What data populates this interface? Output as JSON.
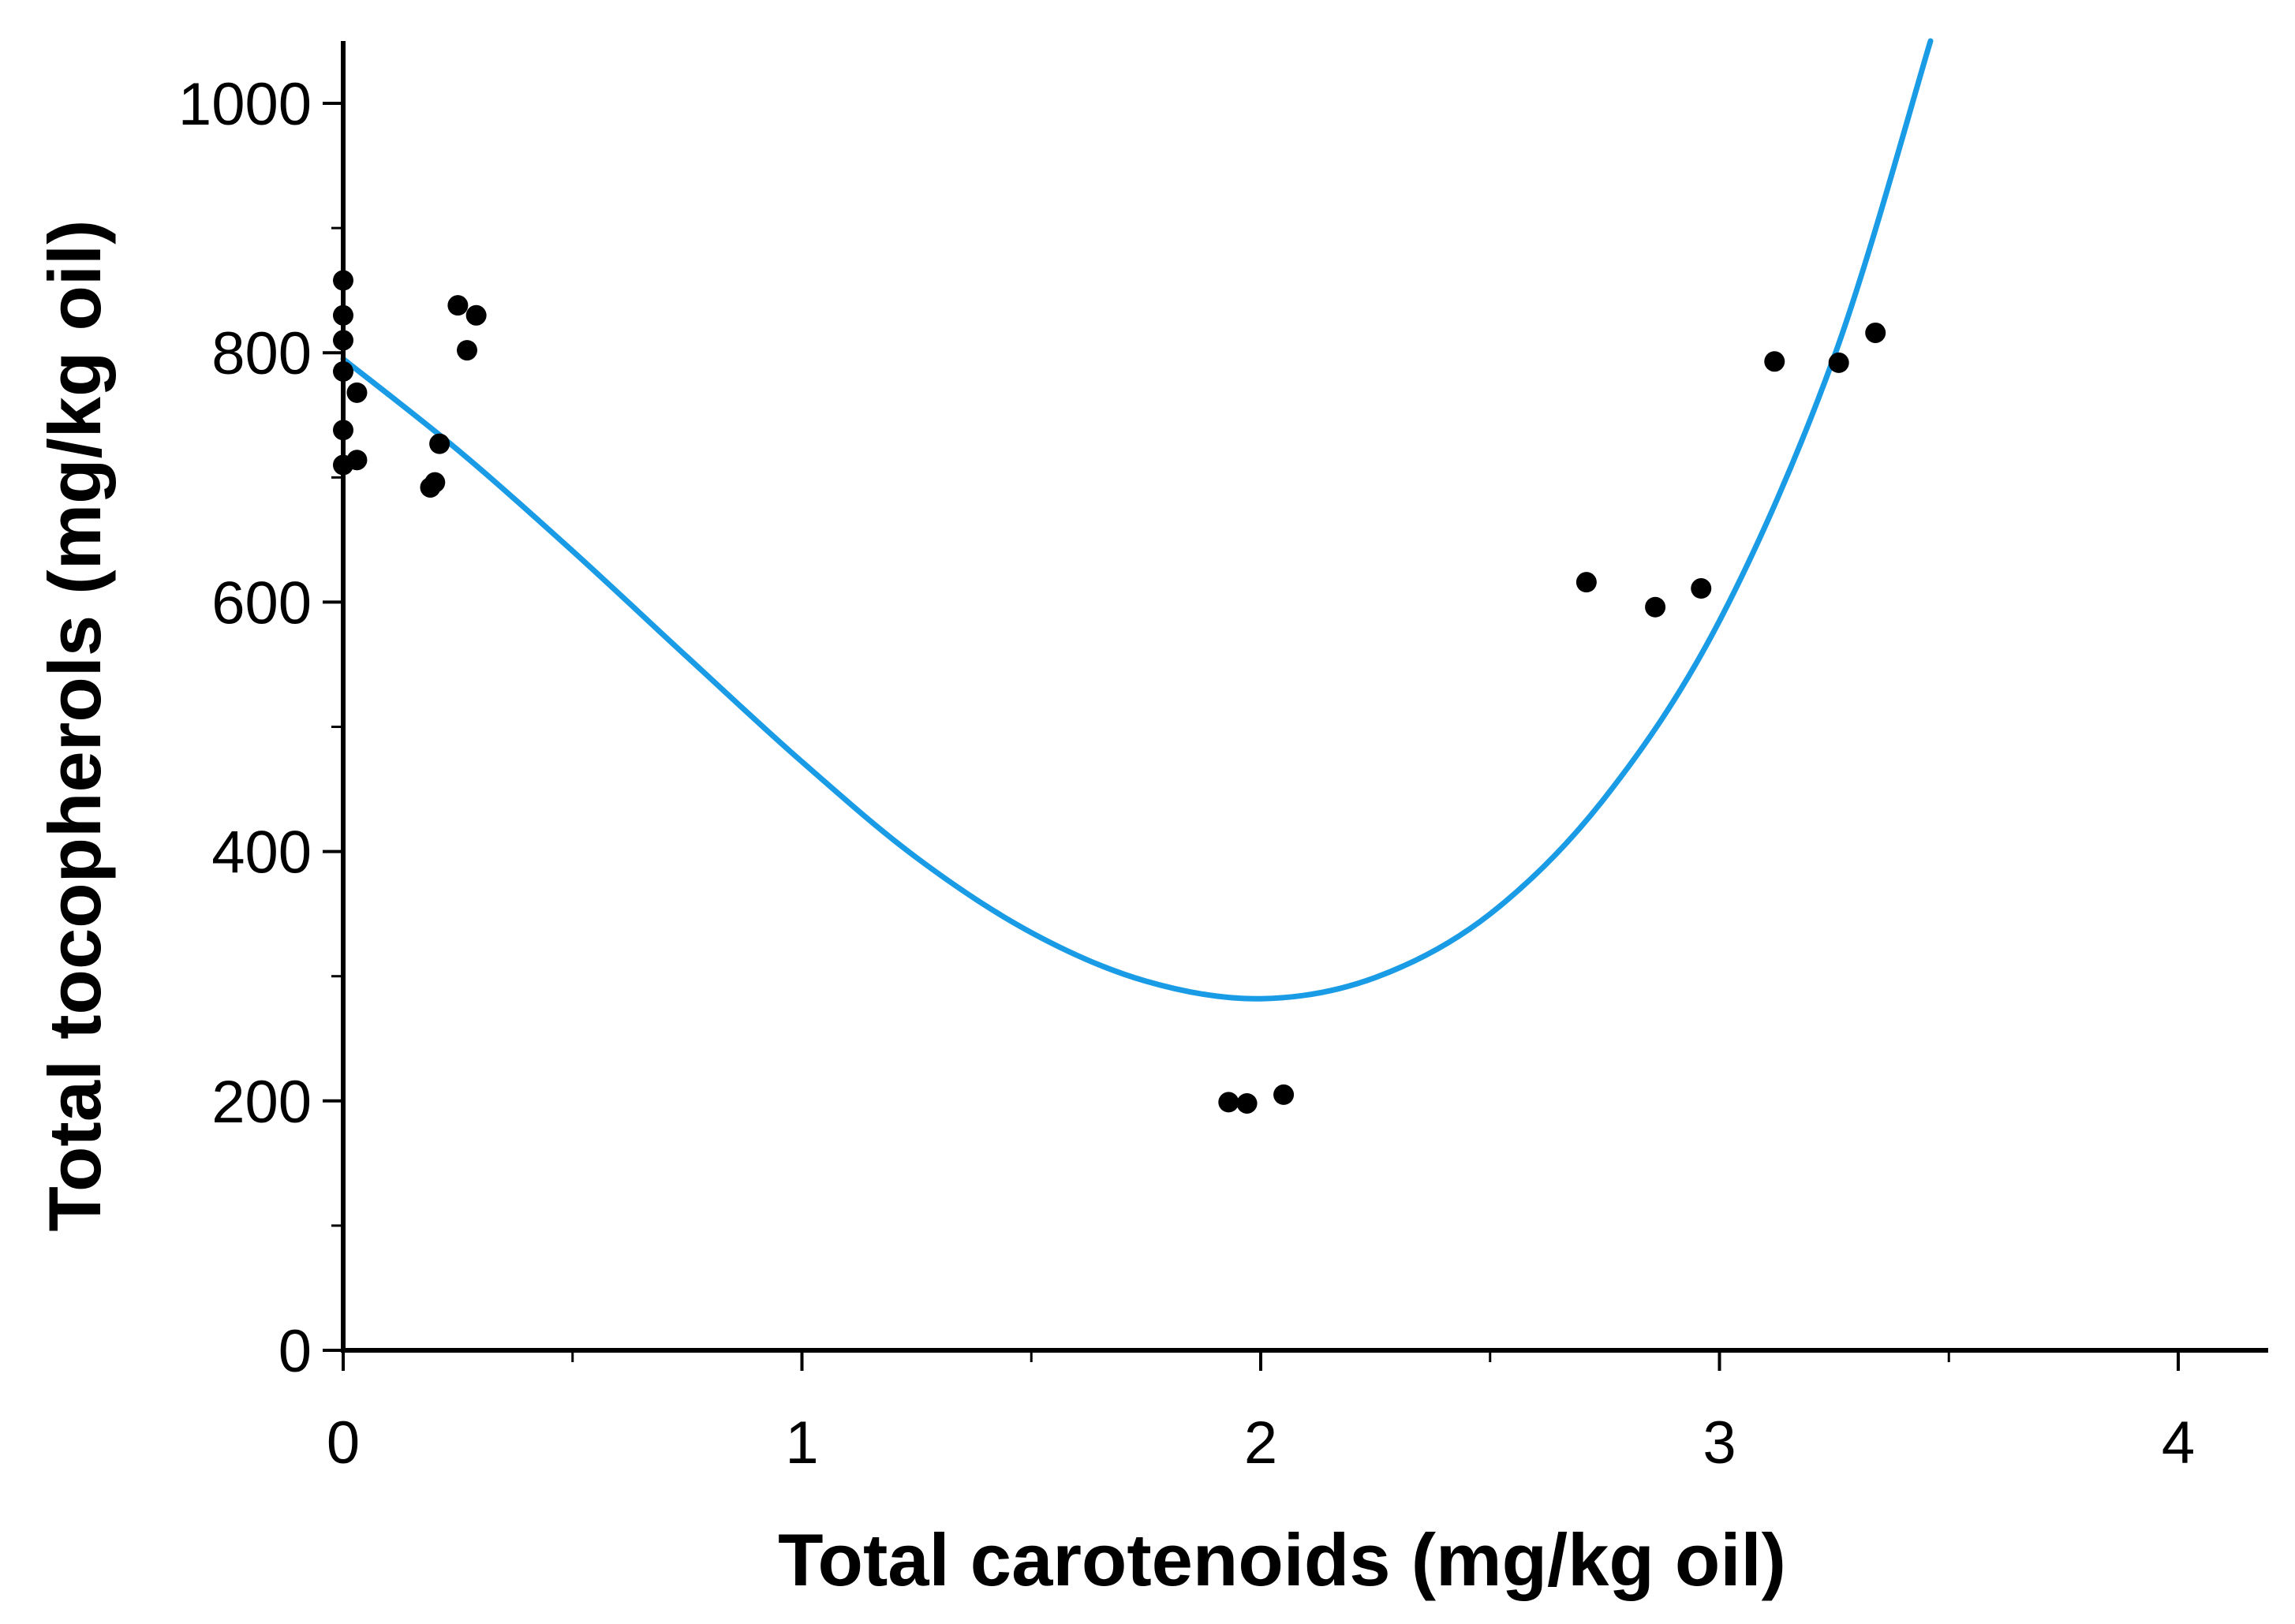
{
  "chart_data": {
    "type": "scatter",
    "title": "",
    "xlabel": "Total carotenoids (mg/kg oil)",
    "ylabel": "Total tocopherols (mg/kg oil)",
    "xlim": [
      0,
      4.2
    ],
    "ylim": [
      0,
      1050
    ],
    "x_ticks": [
      0,
      1,
      2,
      3,
      4
    ],
    "x_tick_labels": [
      "0",
      "1",
      "2",
      "3",
      "4"
    ],
    "x_minor_ticks": [
      0.5,
      1.5,
      2.5,
      3.5
    ],
    "y_ticks": [
      0,
      200,
      400,
      600,
      800,
      1000
    ],
    "y_tick_labels": [
      "0",
      "200",
      "400",
      "600",
      "800",
      "1000"
    ],
    "y_minor_ticks": [
      100,
      300,
      500,
      700,
      900
    ],
    "grid": false,
    "series": [
      {
        "name": "observations",
        "kind": "scatter",
        "color": "#000000",
        "points": [
          {
            "x": 0.0,
            "y": 858
          },
          {
            "x": 0.0,
            "y": 830
          },
          {
            "x": 0.0,
            "y": 810
          },
          {
            "x": 0.0,
            "y": 785
          },
          {
            "x": 0.0,
            "y": 738
          },
          {
            "x": 0.0,
            "y": 710
          },
          {
            "x": 0.03,
            "y": 768
          },
          {
            "x": 0.03,
            "y": 714
          },
          {
            "x": 0.19,
            "y": 692
          },
          {
            "x": 0.2,
            "y": 696
          },
          {
            "x": 0.21,
            "y": 727
          },
          {
            "x": 0.25,
            "y": 838
          },
          {
            "x": 0.27,
            "y": 802
          },
          {
            "x": 0.29,
            "y": 830
          },
          {
            "x": 1.93,
            "y": 199
          },
          {
            "x": 1.97,
            "y": 198
          },
          {
            "x": 2.05,
            "y": 205
          },
          {
            "x": 2.71,
            "y": 616
          },
          {
            "x": 2.86,
            "y": 596
          },
          {
            "x": 2.96,
            "y": 611
          },
          {
            "x": 3.12,
            "y": 793
          },
          {
            "x": 3.26,
            "y": 792
          },
          {
            "x": 3.34,
            "y": 816
          }
        ]
      },
      {
        "name": "fitted curve",
        "kind": "line",
        "color": "#1a9be6",
        "points": [
          {
            "x": 0.0,
            "y": 795
          },
          {
            "x": 0.25,
            "y": 722
          },
          {
            "x": 0.5,
            "y": 641
          },
          {
            "x": 0.75,
            "y": 556
          },
          {
            "x": 1.0,
            "y": 472
          },
          {
            "x": 1.25,
            "y": 395
          },
          {
            "x": 1.5,
            "y": 335
          },
          {
            "x": 1.75,
            "y": 296
          },
          {
            "x": 2.0,
            "y": 282
          },
          {
            "x": 2.25,
            "y": 299
          },
          {
            "x": 2.5,
            "y": 350
          },
          {
            "x": 2.75,
            "y": 443
          },
          {
            "x": 3.0,
            "y": 585
          },
          {
            "x": 3.25,
            "y": 797
          },
          {
            "x": 3.46,
            "y": 1050
          }
        ]
      }
    ]
  }
}
